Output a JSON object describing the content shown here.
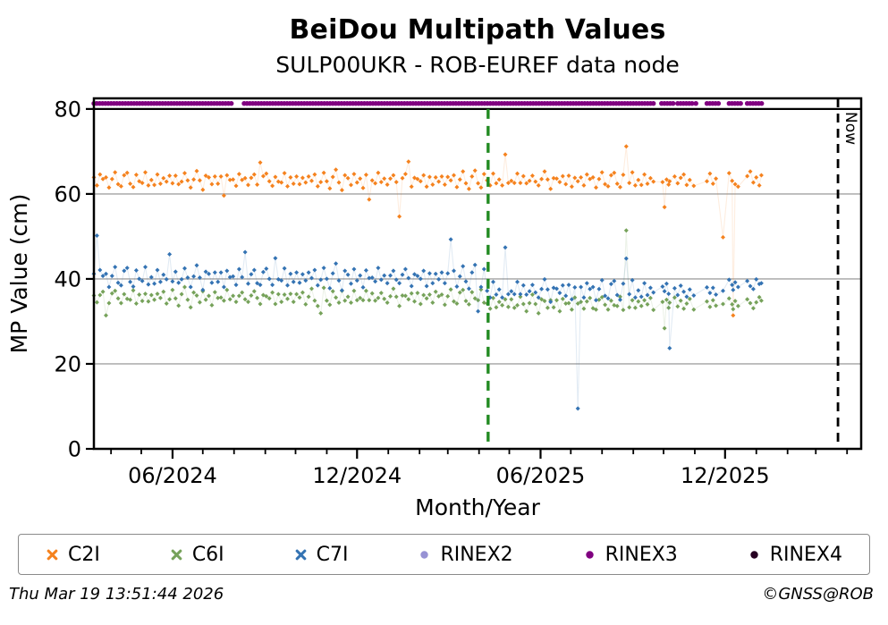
{
  "header": {
    "title": "BeiDou Multipath Values",
    "subtitle": "SULP00UKR - ROB-EUREF data node"
  },
  "footer": {
    "timestamp": "Thu Mar 19 13:51:44 2026",
    "copyright": "©GNSS@ROB"
  },
  "legend": {
    "items": [
      {
        "label": "C2I",
        "marker": "x",
        "color": "#f5821e"
      },
      {
        "label": "C6I",
        "marker": "x",
        "color": "#76a25a"
      },
      {
        "label": "C7I",
        "marker": "x",
        "color": "#3473b3"
      },
      {
        "label": "RINEX2",
        "marker": "circle",
        "color": "#9792d4"
      },
      {
        "label": "RINEX3",
        "marker": "circle",
        "color": "#800080"
      },
      {
        "label": "RINEX4",
        "marker": "circle",
        "color": "#270022"
      }
    ]
  },
  "chart_data": {
    "type": "scatter",
    "title": "BeiDou Multipath Values",
    "subtitle": "SULP00UKR - ROB-EUREF data node",
    "xlabel": "Month/Year",
    "ylabel": "MP Value (cm)",
    "x_unit": "days since 2024-03-15",
    "xlim": [
      0,
      761
    ],
    "ylim": [
      0,
      82.5
    ],
    "yticks": [
      0,
      20,
      40,
      60,
      80
    ],
    "ygrid": [
      20,
      40,
      60
    ],
    "grid_color": "#b0b0b0",
    "xticks_major": [
      {
        "day": 78,
        "label": "06/2024"
      },
      {
        "day": 261,
        "label": "12/2024"
      },
      {
        "day": 443,
        "label": "06/2025"
      },
      {
        "day": 626,
        "label": "12/2025"
      }
    ],
    "xticks_minor": [
      17,
      47,
      108,
      139,
      170,
      200,
      231,
      292,
      323,
      351,
      382,
      412,
      473,
      504,
      535,
      565,
      596,
      657,
      688,
      716,
      747
    ],
    "hline": {
      "y": 80,
      "color": "#000000"
    },
    "vlines": [
      {
        "day": 391,
        "color": "#228b22",
        "style": "dashed",
        "label": "",
        "from_y": 80
      },
      {
        "day": 738,
        "color": "#000000",
        "style": "dashed",
        "label": "Now",
        "from_y": 82.5
      }
    ],
    "days_regular": {
      "start": 0,
      "end": 555,
      "step": 3
    },
    "days_sparse": [
      564,
      566,
      568,
      570,
      571,
      576,
      579,
      582,
      585,
      588,
      591,
      595,
      608,
      611,
      614,
      617,
      624,
      630,
      633,
      634,
      636,
      639,
      648,
      651,
      654,
      657,
      660,
      662
    ],
    "series": [
      {
        "name": "C2I",
        "color": "#f5821e",
        "marker": "x",
        "y_regular": [
          63.9,
          62.0,
          64.6,
          63.5,
          63.9,
          61.5,
          63.5,
          65.1,
          62.3,
          61.8,
          64.4,
          65.0,
          62.4,
          61.6,
          64.5,
          63.0,
          62.6,
          65.1,
          62.0,
          63.3,
          62.1,
          64.6,
          62.4,
          63.7,
          62.9,
          64.3,
          62.5,
          64.3,
          62.3,
          62.9,
          64.9,
          63.2,
          61.5,
          63.4,
          65.4,
          63.2,
          61.0,
          64.3,
          63.9,
          62.3,
          64.1,
          62.4,
          64.1,
          59.6,
          64.4,
          63.3,
          63.4,
          61.9,
          64.7,
          63.3,
          63.7,
          62.1,
          63.8,
          64.6,
          62.2,
          67.4,
          64.2,
          64.8,
          63.0,
          61.9,
          64.0,
          62.9,
          62.7,
          64.9,
          61.8,
          63.9,
          62.4,
          64.1,
          62.3,
          63.8,
          62.7,
          64.1,
          63.1,
          64.6,
          61.8,
          62.8,
          65.0,
          63.0,
          61.3,
          64.0,
          65.7,
          62.7,
          60.9,
          64.4,
          63.7,
          62.1,
          64.7,
          62.7,
          63.6,
          61.4,
          64.5,
          58.7,
          63.2,
          62.5,
          65.0,
          62.8,
          63.6,
          62.2,
          63.6,
          64.4,
          62.8,
          54.7,
          63.7,
          64.7,
          67.6,
          61.7,
          63.8,
          63.5,
          63.0,
          64.4,
          61.7,
          64.0,
          62.2,
          63.9,
          62.9,
          64.1,
          62.2,
          64.0,
          63.2,
          64.4,
          61.6,
          63.4,
          65.3,
          62.5,
          61.2,
          64.1,
          65.5,
          62.5,
          61.5,
          64.7,
          63.2,
          62.0,
          64.8,
          62.5,
          63.4,
          62.0,
          69.3,
          62.6,
          63.1,
          62.6,
          64.8,
          62.6,
          64.2,
          62.5,
          63.1,
          64.3,
          62.9,
          62.0,
          63.5,
          65.3,
          63.4,
          61.2,
          63.7,
          63.6,
          62.8,
          64.2,
          62.3,
          64.3,
          61.7,
          63.8,
          63.0,
          63.9,
          62.0,
          64.6,
          63.5,
          63.9,
          61.5,
          63.5,
          65.1,
          62.3,
          61.8,
          64.4,
          65.0,
          62.4,
          61.6,
          64.5,
          71.2,
          62.6,
          65.1,
          62.0,
          63.3,
          62.1,
          64.6,
          62.4,
          63.7,
          62.9
        ],
        "y_sparse": [
          62.8,
          56.9,
          63.4,
          62.2,
          63.0,
          64.1,
          62.5,
          63.8,
          64.6,
          62.1,
          63.3,
          61.9,
          63.0,
          64.8,
          62.4,
          63.6,
          49.8,
          64.9,
          63.1,
          31.4,
          62.3,
          61.7,
          64.2,
          65.3,
          62.7,
          63.9,
          62.0,
          64.4
        ]
      },
      {
        "name": "C6I",
        "color": "#76a25a",
        "marker": "x",
        "y_regular": [
          36.1,
          34.5,
          36.2,
          37.0,
          31.4,
          34.3,
          36.6,
          37.2,
          35.4,
          34.3,
          36.4,
          35.3,
          35.1,
          37.3,
          34.2,
          36.3,
          34.8,
          36.5,
          34.7,
          36.2,
          35.1,
          36.5,
          35.5,
          37.0,
          34.2,
          35.2,
          37.4,
          35.4,
          33.7,
          36.4,
          38.1,
          35.1,
          33.3,
          36.8,
          36.1,
          34.5,
          37.1,
          35.1,
          36.0,
          33.8,
          36.9,
          35.5,
          35.6,
          34.9,
          37.4,
          35.2,
          36.0,
          34.6,
          36.0,
          36.8,
          35.2,
          34.6,
          36.1,
          37.1,
          35.5,
          34.1,
          36.2,
          35.9,
          35.4,
          36.8,
          34.1,
          36.4,
          34.6,
          36.3,
          35.3,
          36.5,
          34.6,
          36.4,
          35.6,
          36.8,
          34.0,
          35.8,
          37.7,
          34.9,
          33.6,
          31.9,
          37.9,
          34.9,
          33.9,
          37.1,
          35.6,
          34.4,
          37.2,
          34.9,
          35.8,
          34.4,
          37.2,
          35.0,
          35.5,
          35.0,
          37.2,
          35.0,
          36.6,
          34.9,
          35.5,
          36.7,
          35.3,
          34.4,
          35.9,
          37.7,
          35.8,
          33.6,
          36.1,
          36.0,
          35.2,
          36.6,
          34.7,
          36.7,
          34.1,
          36.2,
          35.4,
          36.3,
          34.4,
          37.0,
          35.9,
          36.3,
          33.9,
          35.9,
          37.5,
          34.7,
          34.2,
          36.8,
          37.4,
          34.8,
          34.0,
          36.9,
          35.4,
          35.0,
          37.5,
          34.4,
          34.2,
          33.0,
          35.5,
          33.3,
          34.6,
          33.8,
          35.2,
          33.4,
          35.2,
          33.2,
          33.8,
          35.8,
          34.1,
          32.4,
          34.3,
          36.3,
          34.1,
          31.9,
          35.2,
          34.8,
          33.2,
          35.0,
          33.3,
          35.0,
          32.4,
          35.3,
          34.2,
          34.3,
          32.8,
          35.6,
          34.2,
          34.6,
          33.0,
          34.7,
          35.5,
          33.1,
          32.8,
          35.1,
          35.7,
          33.9,
          32.8,
          34.9,
          33.8,
          33.6,
          35.8,
          32.7,
          51.4,
          33.3,
          35.0,
          33.2,
          34.7,
          33.6,
          35.0,
          34.0,
          35.5,
          32.7
        ],
        "y_sparse": [
          34.6,
          28.4,
          35.1,
          33.2,
          34.4,
          35.6,
          33.5,
          34.9,
          33.0,
          34.2,
          35.3,
          32.8,
          34.7,
          33.4,
          35.0,
          33.7,
          34.1,
          35.4,
          34.0,
          32.9,
          34.8,
          33.6,
          35.2,
          34.3,
          33.1,
          34.5,
          35.7,
          34.9
        ]
      },
      {
        "name": "C7I",
        "color": "#3473b3",
        "marker": "x",
        "y_regular": [
          41.2,
          50.2,
          42.1,
          40.7,
          41.2,
          38.1,
          40.7,
          42.8,
          39.1,
          38.5,
          41.9,
          42.6,
          39.3,
          38.2,
          42.0,
          40.0,
          39.5,
          42.8,
          38.7,
          40.4,
          38.9,
          42.1,
          39.3,
          41.0,
          39.9,
          45.8,
          39.4,
          41.7,
          39.1,
          39.9,
          42.5,
          40.3,
          38.1,
          40.6,
          43.2,
          40.3,
          37.4,
          41.7,
          41.2,
          39.1,
          41.5,
          39.3,
          41.5,
          38.1,
          41.9,
          40.4,
          40.6,
          38.6,
          42.3,
          40.4,
          46.3,
          38.9,
          41.1,
          42.1,
          39.0,
          38.6,
          41.6,
          42.4,
          40.0,
          38.6,
          44.9,
          39.9,
          39.6,
          42.5,
          38.5,
          41.2,
          39.3,
          41.5,
          39.1,
          41.1,
          39.6,
          41.5,
          40.2,
          42.1,
          38.5,
          39.8,
          42.6,
          40.0,
          37.8,
          41.3,
          43.6,
          39.6,
          37.3,
          41.9,
          41.0,
          38.9,
          42.3,
          39.6,
          40.8,
          38.0,
          42.0,
          40.2,
          40.3,
          39.4,
          42.6,
          39.8,
          40.8,
          39.0,
          40.8,
          41.9,
          39.8,
          39.0,
          41.0,
          42.3,
          40.2,
          38.3,
          41.1,
          40.7,
          40.0,
          41.9,
          38.3,
          41.3,
          39.0,
          41.2,
          39.9,
          41.5,
          39.0,
          41.3,
          49.3,
          41.9,
          38.2,
          40.6,
          43.0,
          39.4,
          37.7,
          41.5,
          43.3,
          32.4,
          38.1,
          42.3,
          37.2,
          35.6,
          39.3,
          36.3,
          37.5,
          35.6,
          47.4,
          36.4,
          37.1,
          36.4,
          39.3,
          36.4,
          38.5,
          36.3,
          37.1,
          38.6,
          36.8,
          35.6,
          37.6,
          39.9,
          37.5,
          34.6,
          37.9,
          37.7,
          36.7,
          38.5,
          36.0,
          38.6,
          35.2,
          38.0,
          9.5,
          38.1,
          35.6,
          39.0,
          37.6,
          38.1,
          35.0,
          37.6,
          39.7,
          36.0,
          35.4,
          38.8,
          39.5,
          36.2,
          35.1,
          38.9,
          44.8,
          36.4,
          39.7,
          35.6,
          37.3,
          35.8,
          39.0,
          36.2,
          37.9,
          36.8
        ],
        "y_sparse": [
          38.2,
          37.1,
          38.9,
          36.5,
          23.7,
          37.8,
          36.2,
          38.4,
          37.0,
          35.8,
          37.5,
          36.1,
          38.0,
          36.7,
          37.9,
          36.3,
          37.2,
          39.8,
          38.6,
          37.4,
          39.2,
          38.1,
          39.5,
          38.3,
          37.6,
          39.9,
          38.8,
          39.0
        ]
      },
      {
        "name": "RINEX2",
        "color": "#9792d4",
        "marker": "circle",
        "points": []
      },
      {
        "name": "RINEX3",
        "color": "#800080",
        "marker": "circle",
        "band": {
          "y": 81.3,
          "segments": [
            [
              0,
              138
            ],
            [
              149,
              555
            ],
            [
              563,
              576
            ],
            [
              579,
              594
            ],
            [
              597,
              599
            ],
            [
              608,
              620
            ],
            [
              630,
              643
            ],
            [
              648,
              663
            ]
          ],
          "dot_spacing_days": 1.1
        }
      },
      {
        "name": "RINEX4",
        "color": "#270022",
        "marker": "circle",
        "points": []
      }
    ]
  }
}
